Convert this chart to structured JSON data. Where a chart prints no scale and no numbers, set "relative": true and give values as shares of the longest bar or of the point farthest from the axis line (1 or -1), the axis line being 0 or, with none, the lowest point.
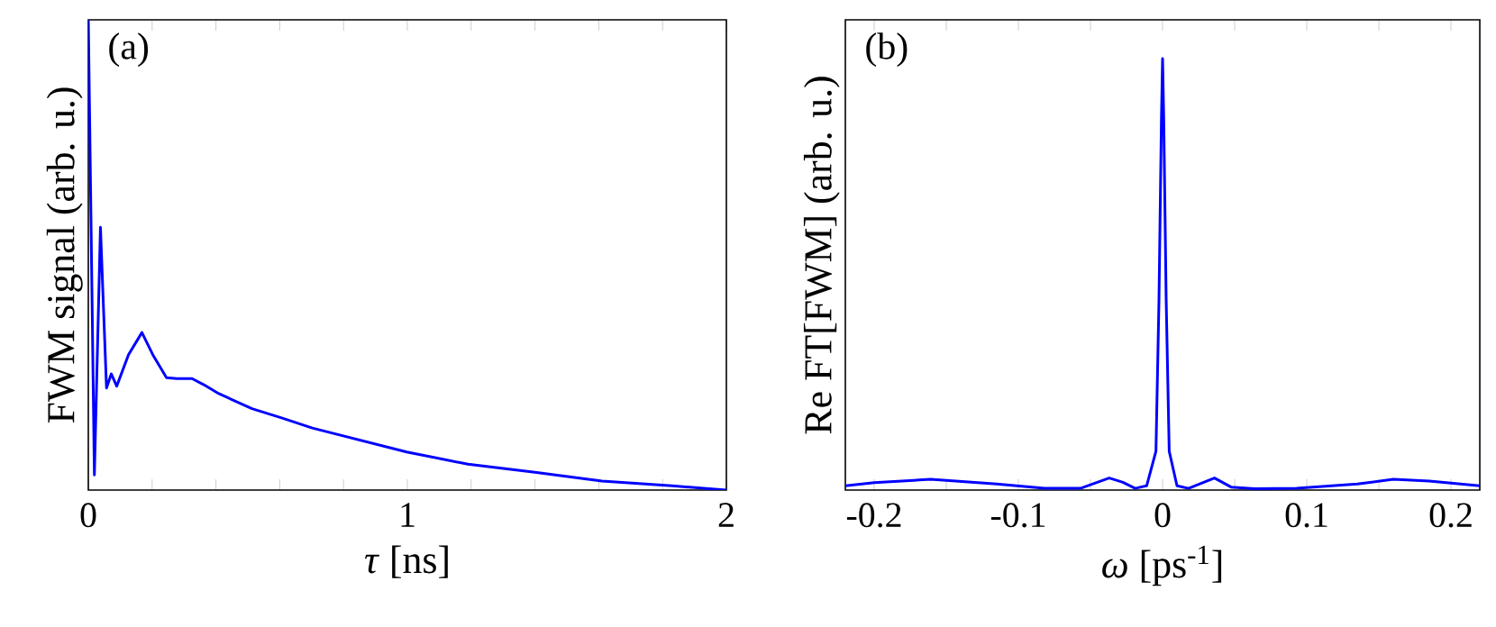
{
  "chart_data": [
    {
      "type": "line",
      "relative": true,
      "xlabel": "*τ* [ns]",
      "ylabel": "FWM signal (arb. u.)",
      "annotations": [
        "(a)"
      ],
      "xlim": [
        0,
        2
      ],
      "xticks": [
        0,
        {
          "value": 0.2,
          "label": null
        },
        {
          "value": 0.4,
          "label": null
        },
        {
          "value": 0.6,
          "label": null
        },
        {
          "value": 0.8,
          "label": null
        },
        1,
        {
          "value": 1.2,
          "label": null
        },
        {
          "value": 1.4,
          "label": null
        },
        {
          "value": 1.6,
          "label": null
        },
        {
          "value": 1.8,
          "label": null
        },
        2
      ],
      "series": [
        {
          "color": "#0000ff",
          "x": [
            0,
            0.019,
            0.038,
            0.057,
            0.072,
            0.089,
            0.126,
            0.168,
            0.202,
            0.245,
            0.277,
            0.325,
            0.362,
            0.409,
            0.513,
            0.608,
            0.702,
            0.998,
            1.19,
            1.4,
            1.61,
            1.83,
            2.0
          ],
          "values": [
            1.0,
            0.032,
            0.559,
            0.217,
            0.247,
            0.221,
            0.288,
            0.335,
            0.288,
            0.239,
            0.237,
            0.237,
            0.224,
            0.205,
            0.173,
            0.153,
            0.132,
            0.081,
            0.055,
            0.038,
            0.019,
            0.009,
            0
          ]
        }
      ]
    },
    {
      "type": "line",
      "relative": true,
      "xlabel": "*ω* [ps$^{-1}$]",
      "ylabel": "Re FT[FWM] (arb. u.)",
      "annotations": [
        "(b)"
      ],
      "xlim": [
        -0.22,
        0.22
      ],
      "xticks": [
        -0.2,
        {
          "value": -0.15,
          "label": null
        },
        -0.1,
        {
          "value": -0.05,
          "label": null
        },
        0,
        {
          "value": 0.05,
          "label": null
        },
        0.1,
        {
          "value": 0.15,
          "label": null
        },
        0.2
      ],
      "series": [
        {
          "color": "#0000ff",
          "x": [
            -0.22,
            -0.2,
            -0.161,
            -0.115,
            -0.082,
            -0.057,
            -0.037,
            -0.0275,
            -0.019,
            -0.011,
            -0.0046,
            -0.0025,
            -0.0008,
            0,
            0.0008,
            0.0025,
            0.0046,
            0.01,
            0.018,
            0.036,
            0.0475,
            0.064,
            0.093,
            0.135,
            0.16,
            0.185,
            0.22
          ],
          "values": [
            0.01,
            0.017,
            0.025,
            0.014,
            0.004,
            0.004,
            0.028,
            0.018,
            0.004,
            0.01,
            0.09,
            0.44,
            0.86,
            1,
            0.86,
            0.44,
            0.09,
            0.01,
            0.004,
            0.028,
            0.007,
            0.003,
            0.004,
            0.014,
            0.025,
            0.021,
            0.01
          ]
        }
      ]
    }
  ]
}
